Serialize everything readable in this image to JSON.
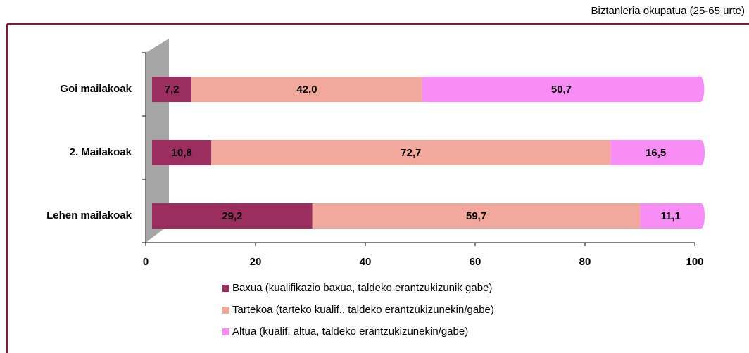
{
  "chart_data": {
    "type": "stacked-bar-horizontal",
    "subtitle": "Biztanleria okupatua (25-65 urte)",
    "categories": [
      "Goi mailakoak",
      "2. Mailakoak",
      "Lehen mailakoak"
    ],
    "series": [
      {
        "name": "Baxua (kualifikazio baxua, taldeko erantzukizunik gabe)",
        "color": "#9b2d5f",
        "values": [
          7.2,
          10.8,
          29.2
        ],
        "value_labels": [
          "7,2",
          "10,8",
          "29,2"
        ]
      },
      {
        "name": "Tartekoa (tarteko kualif., taldeko erantzukizunekin/gabe)",
        "color": "#f2a89c",
        "values": [
          42.0,
          72.7,
          59.7
        ],
        "value_labels": [
          "42,0",
          "72,7",
          "59,7"
        ]
      },
      {
        "name": "Altua (kualif. altua, taldeko erantzukizunekin/gabe)",
        "color": "#f78df5",
        "values": [
          50.7,
          16.5,
          11.1
        ],
        "value_labels": [
          "50,7",
          "16,5",
          "11,1"
        ]
      }
    ],
    "xlim": [
      0,
      100
    ],
    "xticks": [
      0,
      20,
      40,
      60,
      80,
      100
    ]
  }
}
